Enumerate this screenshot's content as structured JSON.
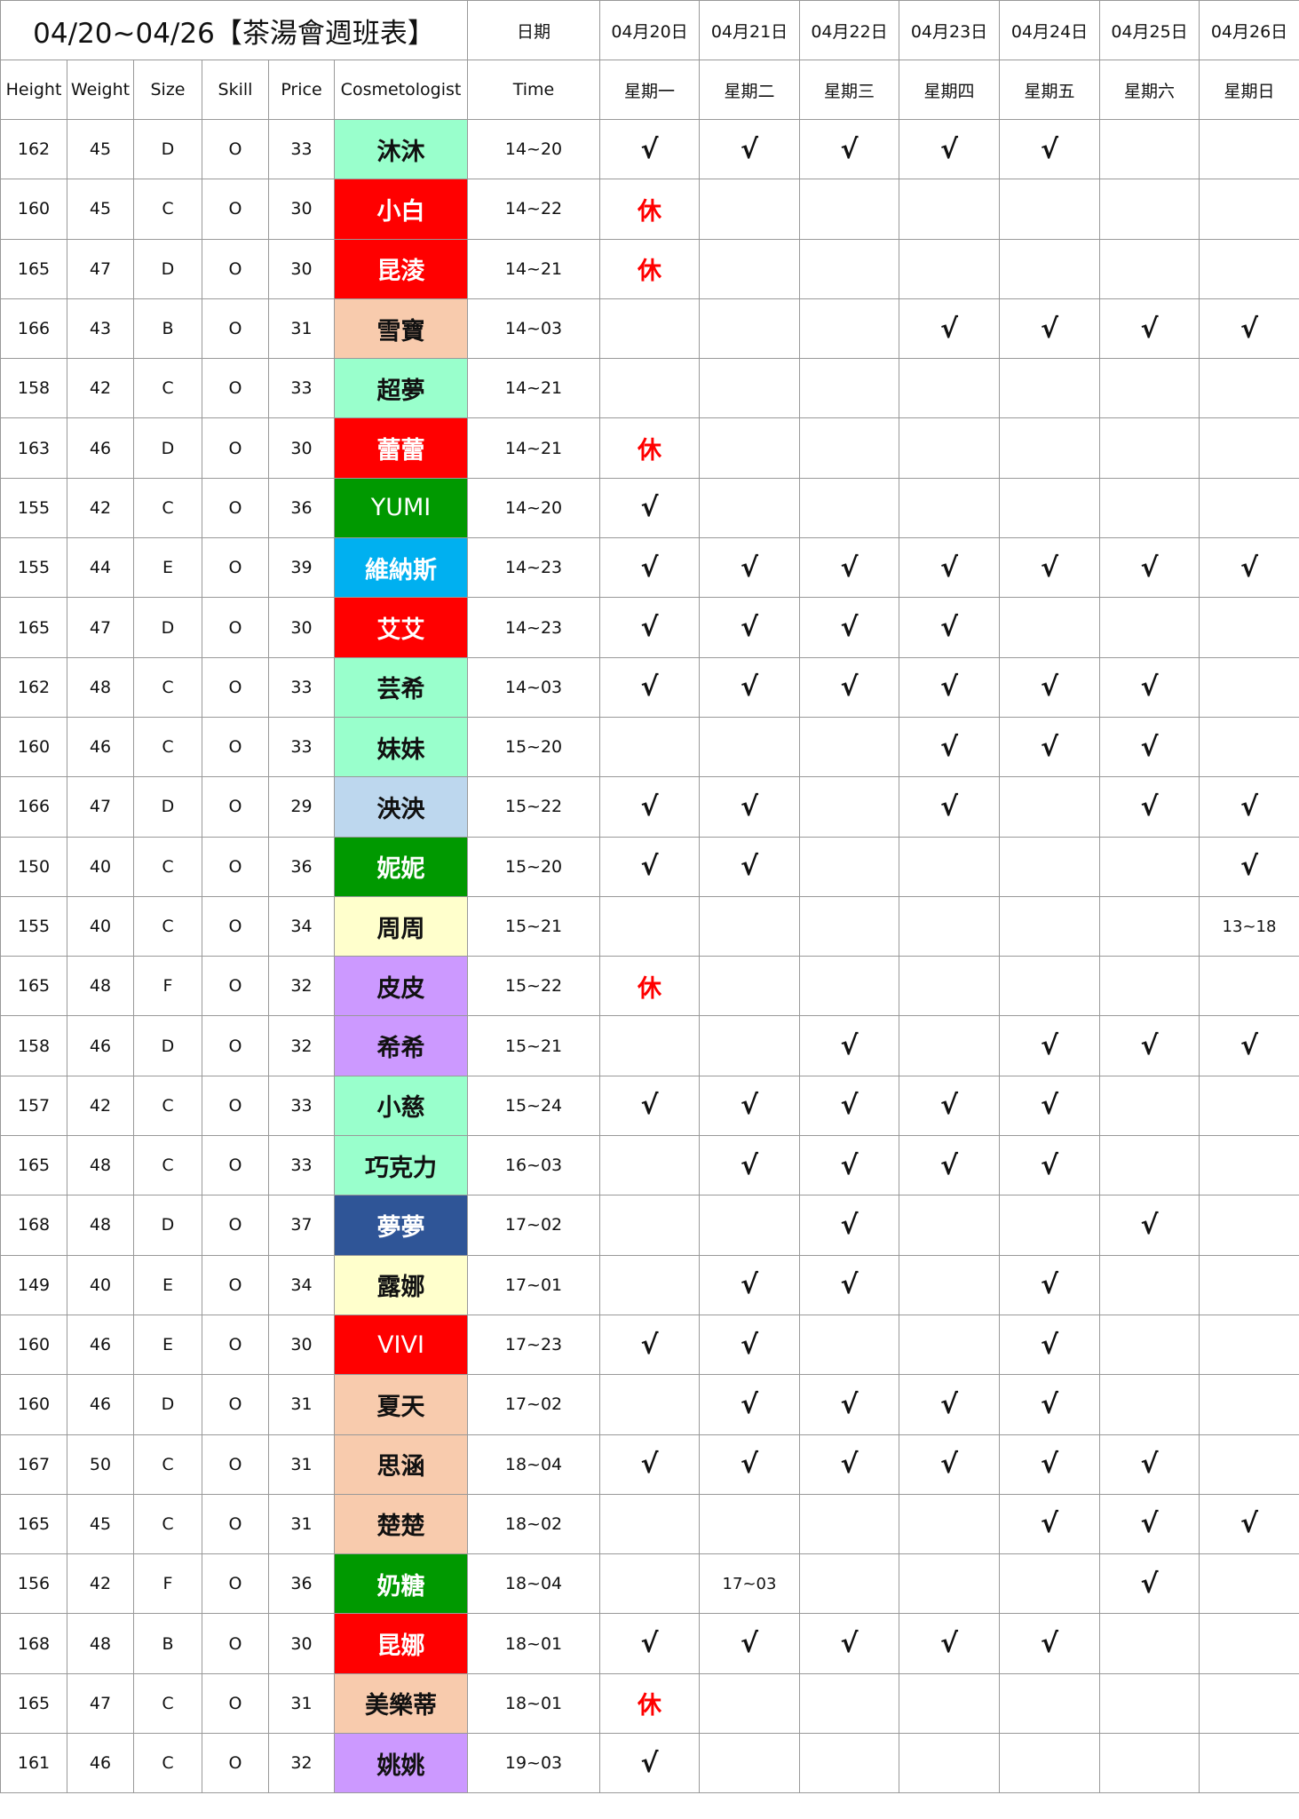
{
  "title": "04/20~04/26【茶湯會週班表】",
  "date_label": "日期",
  "dates": [
    "04月20日",
    "04月21日",
    "04月22日",
    "04月23日",
    "04月24日",
    "04月25日",
    "04月26日"
  ],
  "weekdays": [
    "星期一",
    "星期二",
    "星期三",
    "星期四",
    "星期五",
    "星期六",
    "星期日"
  ],
  "columns": [
    "Height",
    "Weight",
    "Size",
    "Skill",
    "Price",
    "Cosmetologist",
    "Time"
  ],
  "colors": {
    "mint": "#99ffcc",
    "red": "#ff0000",
    "peach": "#f8cbad",
    "green": "#009900",
    "blue": "#00b0f0",
    "lightblue": "#bdd7ee",
    "yellow": "#ffffcc",
    "purple": "#cc99ff",
    "navy": "#2f5597"
  },
  "rows": [
    {
      "height": "162",
      "weight": "45",
      "size": "D",
      "skill": "O",
      "price": "33",
      "name": "沐沐",
      "color": "mint",
      "time": "14~20",
      "days": [
        "√",
        "√",
        "√",
        "√",
        "√",
        "",
        ""
      ]
    },
    {
      "height": "160",
      "weight": "45",
      "size": "C",
      "skill": "O",
      "price": "30",
      "name": "小白",
      "color": "red",
      "time": "14~22",
      "days": [
        "休",
        "",
        "",
        "",
        "",
        "",
        ""
      ]
    },
    {
      "height": "165",
      "weight": "47",
      "size": "D",
      "skill": "O",
      "price": "30",
      "name": "昆淩",
      "color": "red",
      "time": "14~21",
      "days": [
        "休",
        "",
        "",
        "",
        "",
        "",
        ""
      ]
    },
    {
      "height": "166",
      "weight": "43",
      "size": "B",
      "skill": "O",
      "price": "31",
      "name": "雪寶",
      "color": "peach",
      "time": "14~03",
      "days": [
        "",
        "",
        "",
        "√",
        "√",
        "√",
        "√"
      ]
    },
    {
      "height": "158",
      "weight": "42",
      "size": "C",
      "skill": "O",
      "price": "33",
      "name": "超夢",
      "color": "mint",
      "time": "14~21",
      "days": [
        "",
        "",
        "",
        "",
        "",
        "",
        ""
      ]
    },
    {
      "height": "163",
      "weight": "46",
      "size": "D",
      "skill": "O",
      "price": "30",
      "name": "蕾蕾",
      "color": "red",
      "time": "14~21",
      "days": [
        "休",
        "",
        "",
        "",
        "",
        "",
        ""
      ]
    },
    {
      "height": "155",
      "weight": "42",
      "size": "C",
      "skill": "O",
      "price": "36",
      "name": "YUMI",
      "color": "green",
      "time": "14~20",
      "days": [
        "√",
        "",
        "",
        "",
        "",
        "",
        ""
      ]
    },
    {
      "height": "155",
      "weight": "44",
      "size": "E",
      "skill": "O",
      "price": "39",
      "name": "維納斯",
      "color": "blue",
      "time": "14~23",
      "days": [
        "√",
        "√",
        "√",
        "√",
        "√",
        "√",
        "√"
      ]
    },
    {
      "height": "165",
      "weight": "47",
      "size": "D",
      "skill": "O",
      "price": "30",
      "name": "艾艾",
      "color": "red",
      "time": "14~23",
      "days": [
        "√",
        "√",
        "√",
        "√",
        "",
        "",
        ""
      ]
    },
    {
      "height": "162",
      "weight": "48",
      "size": "C",
      "skill": "O",
      "price": "33",
      "name": "芸希",
      "color": "mint",
      "time": "14~03",
      "days": [
        "√",
        "√",
        "√",
        "√",
        "√",
        "√",
        ""
      ]
    },
    {
      "height": "160",
      "weight": "46",
      "size": "C",
      "skill": "O",
      "price": "33",
      "name": "妹妹",
      "color": "mint",
      "time": "15~20",
      "days": [
        "",
        "",
        "",
        "√",
        "√",
        "√",
        ""
      ]
    },
    {
      "height": "166",
      "weight": "47",
      "size": "D",
      "skill": "O",
      "price": "29",
      "name": "泱泱",
      "color": "lightblue",
      "time": "15~22",
      "days": [
        "√",
        "√",
        "",
        "√",
        "",
        "√",
        "√"
      ]
    },
    {
      "height": "150",
      "weight": "40",
      "size": "C",
      "skill": "O",
      "price": "36",
      "name": "妮妮",
      "color": "green",
      "time": "15~20",
      "days": [
        "√",
        "√",
        "",
        "",
        "",
        "",
        "√"
      ]
    },
    {
      "height": "155",
      "weight": "40",
      "size": "C",
      "skill": "O",
      "price": "34",
      "name": "周周",
      "color": "yellow",
      "time": "15~21",
      "days": [
        "",
        "",
        "",
        "",
        "",
        "",
        "13~18"
      ]
    },
    {
      "height": "165",
      "weight": "48",
      "size": "F",
      "skill": "O",
      "price": "32",
      "name": "皮皮",
      "color": "purple",
      "time": "15~22",
      "days": [
        "休",
        "",
        "",
        "",
        "",
        "",
        ""
      ]
    },
    {
      "height": "158",
      "weight": "46",
      "size": "D",
      "skill": "O",
      "price": "32",
      "name": "希希",
      "color": "purple",
      "time": "15~21",
      "days": [
        "",
        "",
        "√",
        "",
        "√",
        "√",
        "√"
      ]
    },
    {
      "height": "157",
      "weight": "42",
      "size": "C",
      "skill": "O",
      "price": "33",
      "name": "小慈",
      "color": "mint",
      "time": "15~24",
      "days": [
        "√",
        "√",
        "√",
        "√",
        "√",
        "",
        ""
      ]
    },
    {
      "height": "165",
      "weight": "48",
      "size": "C",
      "skill": "O",
      "price": "33",
      "name": "巧克力",
      "color": "mint",
      "time": "16~03",
      "days": [
        "",
        "√",
        "√",
        "√",
        "√",
        "",
        ""
      ]
    },
    {
      "height": "168",
      "weight": "48",
      "size": "D",
      "skill": "O",
      "price": "37",
      "name": "夢夢",
      "color": "navy",
      "time": "17~02",
      "days": [
        "",
        "",
        "√",
        "",
        "",
        "√",
        ""
      ]
    },
    {
      "height": "149",
      "weight": "40",
      "size": "E",
      "skill": "O",
      "price": "34",
      "name": "露娜",
      "color": "yellow",
      "time": "17~01",
      "days": [
        "",
        "√",
        "√",
        "",
        "√",
        "",
        ""
      ]
    },
    {
      "height": "160",
      "weight": "46",
      "size": "E",
      "skill": "O",
      "price": "30",
      "name": "VIVI",
      "color": "red",
      "time": "17~23",
      "days": [
        "√",
        "√",
        "",
        "",
        "√",
        "",
        ""
      ]
    },
    {
      "height": "160",
      "weight": "46",
      "size": "D",
      "skill": "O",
      "price": "31",
      "name": "夏天",
      "color": "peach",
      "time": "17~02",
      "days": [
        "",
        "√",
        "√",
        "√",
        "√",
        "",
        ""
      ]
    },
    {
      "height": "167",
      "weight": "50",
      "size": "C",
      "skill": "O",
      "price": "31",
      "name": "思涵",
      "color": "peach",
      "time": "18~04",
      "days": [
        "√",
        "√",
        "√",
        "√",
        "√",
        "√",
        ""
      ]
    },
    {
      "height": "165",
      "weight": "45",
      "size": "C",
      "skill": "O",
      "price": "31",
      "name": "楚楚",
      "color": "peach",
      "time": "18~02",
      "days": [
        "",
        "",
        "",
        "",
        "√",
        "√",
        "√"
      ]
    },
    {
      "height": "156",
      "weight": "42",
      "size": "F",
      "skill": "O",
      "price": "36",
      "name": "奶糖",
      "color": "green",
      "time": "18~04",
      "days": [
        "",
        "17~03",
        "",
        "",
        "",
        "√",
        ""
      ]
    },
    {
      "height": "168",
      "weight": "48",
      "size": "B",
      "skill": "O",
      "price": "30",
      "name": "昆娜",
      "color": "red",
      "time": "18~01",
      "days": [
        "√",
        "√",
        "√",
        "√",
        "√",
        "",
        ""
      ]
    },
    {
      "height": "165",
      "weight": "47",
      "size": "C",
      "skill": "O",
      "price": "31",
      "name": "美樂蒂",
      "color": "peach",
      "time": "18~01",
      "days": [
        "休",
        "",
        "",
        "",
        "",
        "",
        ""
      ]
    },
    {
      "height": "161",
      "weight": "46",
      "size": "C",
      "skill": "O",
      "price": "32",
      "name": "姚姚",
      "color": "purple",
      "time": "19~03",
      "days": [
        "√",
        "",
        "",
        "",
        "",
        "",
        ""
      ]
    }
  ]
}
